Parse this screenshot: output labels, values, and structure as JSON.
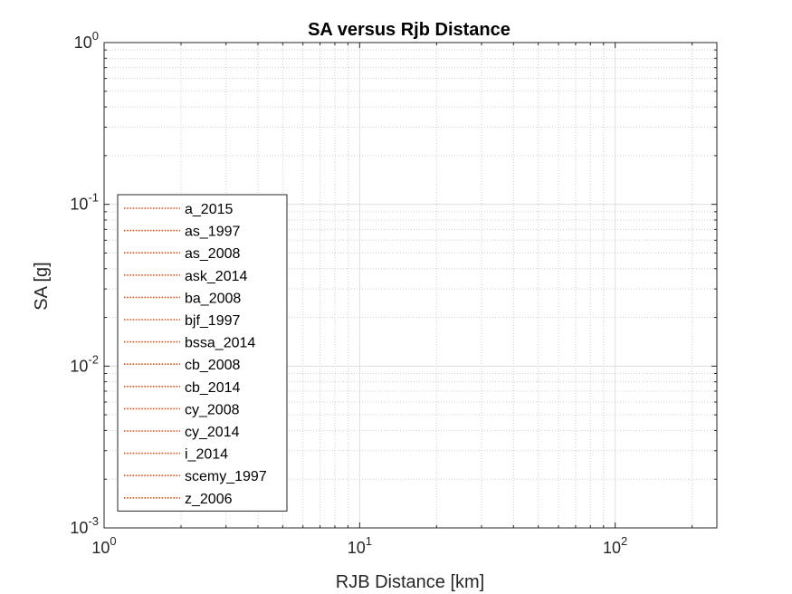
{
  "chart_data": {
    "type": "line",
    "title": "SA versus Rjb Distance",
    "xlabel": "RJB Distance [km]",
    "ylabel": "SA [g]",
    "xscale": "log",
    "yscale": "log",
    "xlim": [
      1,
      250
    ],
    "ylim": [
      0.001,
      1
    ],
    "grid": true,
    "minor_grid": true,
    "legend_position": "bottom-left",
    "x_ticks": [
      {
        "base": "10",
        "exp": "0",
        "value": 1
      },
      {
        "base": "10",
        "exp": "1",
        "value": 10
      },
      {
        "base": "10",
        "exp": "2",
        "value": 100
      }
    ],
    "y_ticks": [
      {
        "base": "10",
        "exp": "0",
        "value": 1
      },
      {
        "base": "10",
        "exp": "-1",
        "value": 0.1
      },
      {
        "base": "10",
        "exp": "-2",
        "value": 0.01
      },
      {
        "base": "10",
        "exp": "-3",
        "value": 0.001
      }
    ],
    "series_color": "#d95319",
    "series": [
      {
        "name": "a_2015",
        "values": []
      },
      {
        "name": "as_1997",
        "values": []
      },
      {
        "name": "as_2008",
        "values": []
      },
      {
        "name": "ask_2014",
        "values": []
      },
      {
        "name": "ba_2008",
        "values": []
      },
      {
        "name": "bjf_1997",
        "values": []
      },
      {
        "name": "bssa_2014",
        "values": []
      },
      {
        "name": "cb_2008",
        "values": []
      },
      {
        "name": "cb_2014",
        "values": []
      },
      {
        "name": "cy_2008",
        "values": []
      },
      {
        "name": "cy_2014",
        "values": []
      },
      {
        "name": "i_2014",
        "values": []
      },
      {
        "name": "scemy_1997",
        "values": []
      },
      {
        "name": "z_2006",
        "values": []
      }
    ]
  }
}
